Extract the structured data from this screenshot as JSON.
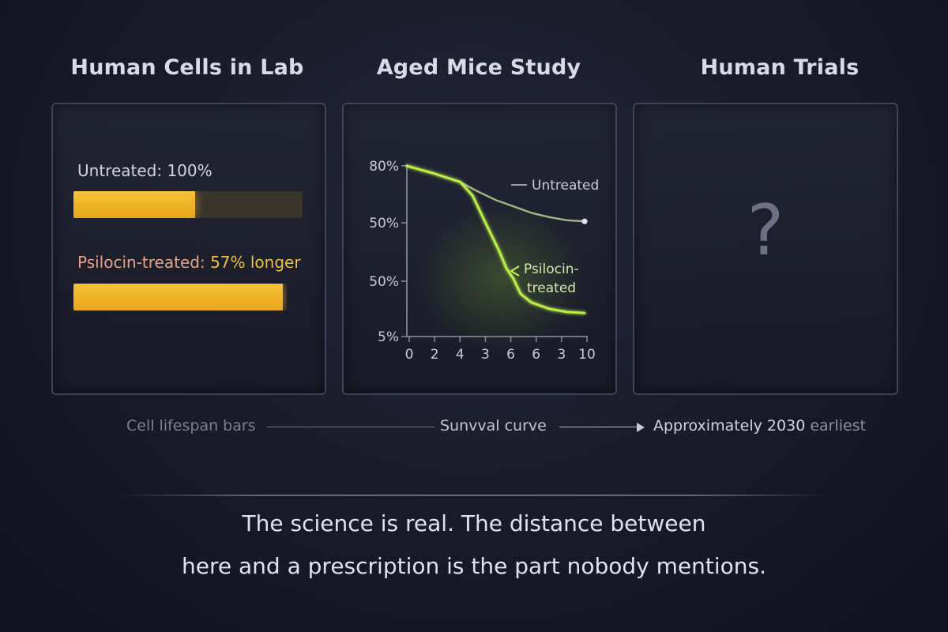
{
  "stages": {
    "cells": {
      "title": "Human Cells in Lab"
    },
    "mice": {
      "title": "Aged Mice Study"
    },
    "human": {
      "title": "Human Trials",
      "placeholder_symbol": "?"
    }
  },
  "cell_bars": {
    "untreated_label": "Untreated: 100%",
    "treated_label_prefix": "Psilocin-treated:",
    "treated_label_highlight": "57% longer",
    "untreated_fill_fraction": 0.53,
    "treated_fill_fraction": 0.98,
    "bar_color": "#f2b630"
  },
  "chart_data": [
    {
      "type": "bar",
      "categories": [
        "Untreated: 100%",
        "Psilocin-treated: 57% longer"
      ],
      "values": [
        100,
        157
      ]
    },
    {
      "type": "line",
      "x_ticks": [
        "0",
        "2",
        "4",
        "3",
        "6",
        "6",
        "3",
        "10"
      ],
      "y_ticks": [
        "80%",
        "50%",
        "50%",
        "5%"
      ],
      "series": [
        {
          "name": "Untreated",
          "color": "#a7b58a",
          "x": [
            0,
            1.5,
            3,
            4,
            5,
            6,
            7,
            8,
            9,
            10
          ],
          "y": [
            80,
            76.5,
            72.5,
            68,
            64,
            61,
            58,
            56,
            54.5,
            54
          ]
        },
        {
          "name": "Psilocin-treated",
          "color": "#b8ef4a",
          "x": [
            0,
            1.5,
            3,
            3.7,
            4.5,
            5.2,
            5.6,
            6,
            6.4,
            7,
            8,
            9,
            10
          ],
          "y": [
            80,
            76.5,
            72.5,
            66,
            52,
            40,
            32,
            27,
            20,
            16,
            13,
            11.5,
            11
          ]
        }
      ]
    }
  ],
  "flow": {
    "step1": "Cell lifespan bars",
    "step2": "Sunvval curve",
    "step3_prefix": "Approximately 2030",
    "step3_suffix": "earliest"
  },
  "closing": {
    "line1": "The science is real. The distance between",
    "line2": "here and a prescription is the part nobody mentions."
  }
}
